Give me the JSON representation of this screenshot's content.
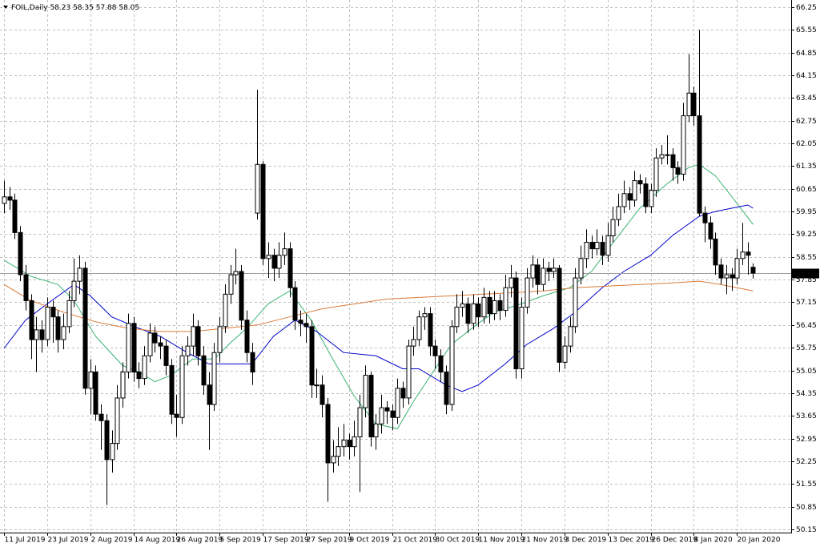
{
  "chart_data": {
    "type": "candlestick",
    "title": "FOIL,Daily",
    "categories": [
      "11 Jul 2019",
      null,
      null,
      null,
      null,
      null,
      null,
      null,
      "23 Jul 2019",
      null,
      null,
      null,
      null,
      null,
      null,
      null,
      "2 Aug 2019",
      null,
      null,
      null,
      null,
      null,
      null,
      null,
      "14 Aug 2019",
      null,
      null,
      null,
      null,
      null,
      null,
      null,
      "26 Aug 2019",
      null,
      null,
      null,
      null,
      null,
      null,
      null,
      "5 Sep 2019",
      null,
      null,
      null,
      null,
      null,
      null,
      null,
      "17 Sep 2019",
      null,
      null,
      null,
      null,
      null,
      null,
      null,
      "27 Sep 2019",
      null,
      null,
      null,
      null,
      null,
      null,
      null,
      "9 Oct 2019",
      null,
      null,
      null,
      null,
      null,
      null,
      null,
      "21 Oct 2019",
      null,
      null,
      null,
      null,
      null,
      null,
      null,
      "30 Oct 2019",
      null,
      null,
      null,
      null,
      null,
      null,
      null,
      "11 Nov 2019",
      null,
      null,
      null,
      null,
      null,
      null,
      null,
      "21 Nov 2019",
      null,
      null,
      null,
      null,
      null,
      null,
      null,
      "3 Dec 2019",
      null,
      null,
      null,
      null,
      null,
      null,
      null,
      "13 Dec 2019",
      null,
      null,
      null,
      null,
      null,
      null,
      null,
      "26 Dec 2019",
      null,
      null,
      null,
      null,
      null,
      null,
      null,
      "8 Jan 2020",
      null,
      null,
      null,
      null,
      null,
      null,
      null,
      "20 Jan 2020",
      null,
      null,
      null
    ],
    "open": [
      60.2,
      60.4,
      60.3,
      59.3,
      58.0,
      57.2,
      56.0,
      56.3,
      56.0,
      57.0,
      56.7,
      56.0,
      56.4,
      57.2,
      57.8,
      58.2,
      54.5,
      55.0,
      53.7,
      53.5,
      52.3,
      52.8,
      54.2,
      55.0,
      56.5,
      55.0,
      54.8,
      55.5,
      56.2,
      55.9,
      55.8,
      55.2,
      53.7,
      53.6,
      55.5,
      55.8,
      56.4,
      55.5,
      54.6,
      54.0,
      55.6,
      56.4,
      57.4,
      58.0,
      58.1,
      56.6,
      55.6,
      59.9,
      61.4,
      58.5,
      58.6,
      58.2,
      58.6,
      58.8,
      57.6,
      56.6,
      56.5,
      56.4,
      54.6,
      54.6,
      54.0,
      52.2,
      52.4,
      52.7,
      52.9,
      52.7,
      53.0,
      53.9,
      54.9,
      53.0,
      53.4,
      53.9,
      53.8,
      53.6,
      54.5,
      54.2,
      55.8,
      56.0,
      56.7,
      56.8,
      55.8,
      55.5,
      55.0,
      54.0,
      56.4,
      57.0,
      57.1,
      56.5,
      57.1,
      56.7,
      57.3,
      56.8,
      57.2,
      56.9,
      57.6,
      57.9,
      55.1,
      57.0,
      57.9,
      58.3,
      57.7,
      58.2,
      58.1,
      58.2,
      55.3,
      55.8,
      56.4,
      57.9,
      58.5,
      59.0,
      58.8,
      59.0,
      58.6,
      59.2,
      59.7,
      60.1,
      60.5,
      60.3,
      60.9,
      60.8,
      60.1,
      60.6,
      61.6,
      61.7,
      61.7,
      61.3,
      61.1,
      62.9,
      63.6,
      62.9,
      59.9,
      59.6,
      59.1,
      58.3,
      57.9,
      58.0,
      57.9,
      58.5,
      58.7,
      58.23
    ],
    "high": [
      60.9,
      60.7,
      60.5,
      59.5,
      58.3,
      57.4,
      56.7,
      56.6,
      57.3,
      57.2,
      56.9,
      56.8,
      57.5,
      58.5,
      58.6,
      58.4,
      55.4,
      55.2,
      54.0,
      53.7,
      53.2,
      54.6,
      55.3,
      56.8,
      56.7,
      55.3,
      55.8,
      56.5,
      56.4,
      56.1,
      56.0,
      55.4,
      54.3,
      55.8,
      56.1,
      56.8,
      56.6,
      55.8,
      55.0,
      55.9,
      56.7,
      57.7,
      58.3,
      58.8,
      58.3,
      56.9,
      55.9,
      63.7,
      61.5,
      59.0,
      58.8,
      59.0,
      59.3,
      59.0,
      57.8,
      56.9,
      56.8,
      56.6,
      55.1,
      54.9,
      54.2,
      52.9,
      53.3,
      53.4,
      53.1,
      53.5,
      54.3,
      55.2,
      55.0,
      53.7,
      54.3,
      54.1,
      54.0,
      54.8,
      54.7,
      56.0,
      56.4,
      56.9,
      57.0,
      57.0,
      56.0,
      55.7,
      55.2,
      56.6,
      57.4,
      57.5,
      57.3,
      57.4,
      57.3,
      57.6,
      57.5,
      57.5,
      57.4,
      58.0,
      58.3,
      58.1,
      57.3,
      58.2,
      58.6,
      58.5,
      58.5,
      58.4,
      58.5,
      58.3,
      56.1,
      56.7,
      58.2,
      58.9,
      59.4,
      59.2,
      59.4,
      59.2,
      59.6,
      60.1,
      60.5,
      60.9,
      60.7,
      61.2,
      61.1,
      61.0,
      60.8,
      61.9,
      62.0,
      62.3,
      61.9,
      61.5,
      63.3,
      64.8,
      63.8,
      65.55,
      60.1,
      59.8,
      59.3,
      58.5,
      58.3,
      58.2,
      58.8,
      59.6,
      59.0,
      58.35
    ],
    "low": [
      59.9,
      60.0,
      59.1,
      57.8,
      56.9,
      55.4,
      55.0,
      55.6,
      55.8,
      55.9,
      55.6,
      55.7,
      56.2,
      57.0,
      57.4,
      54.3,
      53.7,
      53.5,
      52.6,
      50.9,
      51.9,
      52.6,
      53.9,
      54.8,
      54.7,
      54.5,
      54.6,
      55.3,
      55.6,
      55.4,
      54.9,
      53.4,
      53.0,
      53.4,
      55.2,
      55.5,
      55.2,
      54.3,
      52.6,
      53.8,
      55.3,
      56.2,
      57.1,
      57.7,
      56.3,
      55.3,
      54.6,
      59.7,
      58.3,
      57.9,
      57.8,
      57.9,
      58.3,
      57.3,
      56.3,
      56.1,
      55.9,
      54.2,
      54.2,
      53.6,
      51.0,
      51.9,
      52.1,
      52.4,
      52.3,
      52.4,
      51.3,
      53.6,
      52.7,
      52.6,
      53.1,
      53.4,
      53.2,
      53.4,
      53.9,
      54.0,
      55.5,
      55.8,
      56.3,
      55.5,
      55.1,
      54.7,
      53.7,
      53.8,
      56.2,
      56.7,
      56.2,
      56.3,
      56.4,
      56.5,
      56.5,
      56.6,
      56.6,
      56.7,
      57.3,
      54.8,
      54.8,
      56.8,
      57.6,
      57.4,
      57.5,
      57.8,
      57.9,
      55.0,
      55.1,
      55.6,
      56.2,
      57.7,
      58.2,
      58.5,
      58.6,
      58.3,
      58.4,
      59.0,
      59.5,
      59.9,
      60.0,
      60.1,
      60.5,
      59.9,
      59.9,
      60.4,
      61.4,
      61.4,
      60.9,
      60.8,
      60.9,
      62.7,
      62.6,
      59.8,
      59.0,
      58.8,
      58.0,
      57.7,
      57.4,
      57.5,
      57.7,
      58.3,
      58.0,
      57.88
    ],
    "close": [
      60.4,
      60.3,
      59.3,
      58.0,
      57.2,
      56.0,
      56.3,
      56.0,
      57.0,
      56.7,
      56.0,
      56.4,
      57.2,
      57.8,
      58.2,
      54.5,
      55.0,
      53.7,
      53.5,
      52.3,
      52.8,
      54.2,
      55.0,
      56.5,
      55.0,
      54.8,
      55.5,
      56.2,
      55.9,
      55.8,
      55.2,
      53.7,
      53.6,
      55.5,
      55.8,
      56.4,
      55.5,
      54.6,
      54.0,
      55.6,
      56.4,
      57.4,
      58.0,
      58.1,
      56.6,
      55.6,
      55.0,
      61.4,
      58.5,
      58.6,
      58.2,
      58.6,
      58.8,
      57.6,
      56.6,
      56.5,
      56.4,
      54.6,
      54.6,
      54.0,
      52.2,
      52.4,
      52.7,
      52.9,
      52.7,
      53.0,
      53.9,
      54.9,
      53.0,
      53.4,
      53.9,
      53.8,
      53.6,
      54.5,
      54.2,
      55.8,
      56.0,
      56.7,
      56.8,
      55.8,
      55.5,
      55.0,
      54.0,
      56.4,
      57.0,
      57.1,
      56.5,
      57.1,
      56.7,
      57.3,
      56.8,
      57.2,
      56.9,
      57.6,
      57.9,
      55.1,
      57.0,
      57.9,
      58.3,
      57.7,
      58.2,
      58.1,
      58.2,
      55.3,
      55.8,
      56.4,
      57.9,
      58.5,
      59.0,
      58.8,
      59.0,
      58.6,
      59.2,
      59.7,
      60.1,
      60.5,
      60.3,
      60.9,
      60.8,
      60.1,
      60.6,
      61.6,
      61.7,
      61.7,
      61.3,
      61.1,
      62.9,
      63.6,
      62.9,
      59.9,
      59.6,
      59.1,
      58.3,
      57.9,
      58.0,
      57.9,
      58.5,
      58.7,
      58.6,
      58.05
    ],
    "lines": [
      {
        "color": "#3cb371",
        "x": [
          0,
          5,
          10,
          13,
          17,
          22,
          25,
          28,
          31,
          35,
          39,
          42,
          45,
          49,
          53,
          57,
          61,
          65,
          69,
          73,
          76,
          80,
          83,
          88,
          91,
          96,
          100,
          105,
          109,
          114,
          118,
          123,
          127,
          129,
          132,
          136,
          139
        ],
        "values": [
          58.45,
          57.95,
          57.7,
          57.2,
          56.1,
          55.2,
          55.0,
          54.7,
          54.9,
          55.4,
          55.4,
          55.9,
          56.35,
          57.1,
          57.5,
          56.6,
          55.4,
          54.25,
          53.4,
          53.25,
          54.1,
          55.1,
          55.85,
          56.5,
          56.85,
          57.1,
          57.35,
          57.6,
          58.1,
          59.2,
          60.05,
          60.8,
          61.3,
          61.4,
          61.05,
          60.2,
          59.55
        ]
      },
      {
        "color": "#0000cd",
        "x": [
          0,
          4,
          8,
          13,
          16,
          20,
          25,
          29,
          34,
          38,
          42,
          46,
          50,
          54,
          58,
          63,
          69,
          74,
          77,
          82,
          85,
          88,
          93,
          97,
          102,
          106,
          111,
          115,
          120,
          124,
          129,
          132,
          135,
          138,
          139
        ],
        "values": [
          55.73,
          56.6,
          57.1,
          57.7,
          57.35,
          56.7,
          56.35,
          56.1,
          55.6,
          55.25,
          55.25,
          55.25,
          56.1,
          56.6,
          56.25,
          55.6,
          55.5,
          55.1,
          55.1,
          54.6,
          54.4,
          54.6,
          55.25,
          55.85,
          56.35,
          56.85,
          57.6,
          58.1,
          58.6,
          59.2,
          59.8,
          59.95,
          60.05,
          60.15,
          60.05
        ]
      },
      {
        "color": "#d97b3a",
        "x": [
          0,
          5,
          11,
          17,
          23,
          29,
          35,
          41,
          47,
          53,
          59,
          65,
          71,
          77,
          83,
          89,
          95,
          100,
          106,
          112,
          118,
          124,
          129,
          133,
          139
        ],
        "values": [
          57.7,
          57.2,
          56.85,
          56.55,
          56.35,
          56.25,
          56.25,
          56.35,
          56.45,
          56.7,
          56.95,
          57.1,
          57.25,
          57.3,
          57.35,
          57.4,
          57.45,
          57.5,
          57.6,
          57.65,
          57.7,
          57.75,
          57.8,
          57.7,
          57.5
        ]
      }
    ],
    "ylim": [
      50.05,
      66.47
    ],
    "yticks": [
      66.25,
      65.55,
      64.85,
      64.15,
      63.45,
      62.75,
      62.05,
      61.35,
      60.65,
      59.95,
      59.25,
      58.55,
      57.85,
      57.15,
      56.45,
      55.75,
      55.05,
      54.35,
      53.65,
      52.95,
      52.25,
      51.55,
      50.85,
      50.15
    ],
    "grid": true
  }
}
